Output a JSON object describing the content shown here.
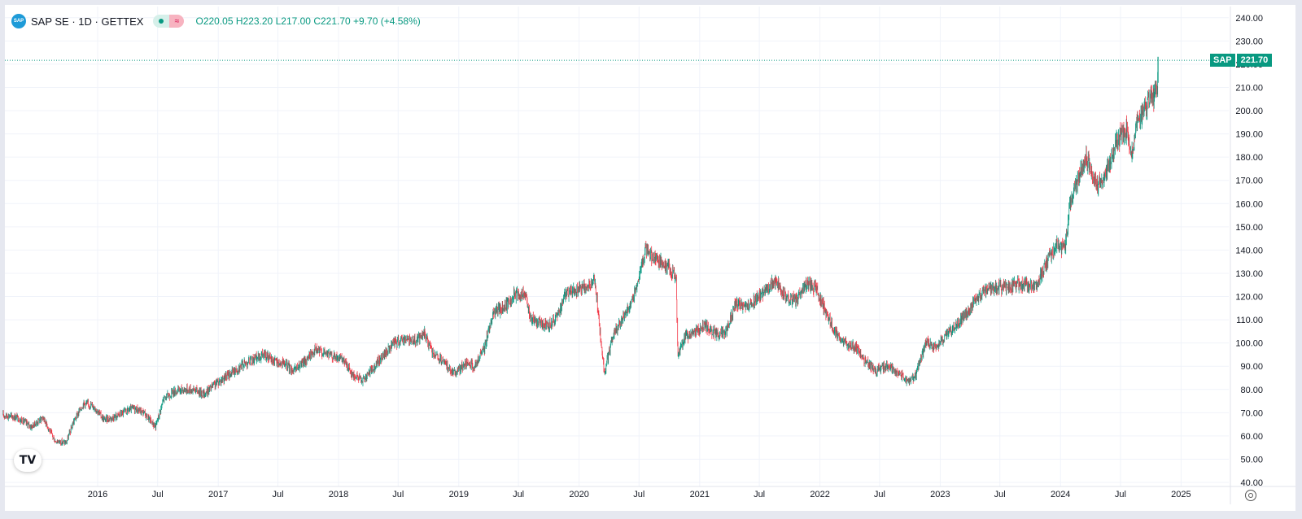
{
  "legend": {
    "symbol": "SAP SE · 1D · GETTEX",
    "logo_text": "SAP",
    "flag_glyph": "≈",
    "open_label": "O",
    "open": "220.05",
    "high_label": "H",
    "high": "223.20",
    "low_label": "L",
    "low": "217.00",
    "close_label": "C",
    "close": "221.70",
    "change": "+9.70 (+4.58%)"
  },
  "price_tag": {
    "symbol": "SAP",
    "value": "221.70"
  },
  "colors": {
    "up": "#089981",
    "down": "#f23645",
    "grid": "#f0f3fa",
    "axis_text": "#131722",
    "tag": "#089981"
  },
  "icons": {
    "logo": "tradingview-logo-icon",
    "settings": "gear-icon"
  },
  "tradingview_logo_text": "TV",
  "chart_data": {
    "type": "candlestick",
    "title": "SAP SE · 1D · GETTEX",
    "y_ticks": [
      40,
      50,
      60,
      70,
      80,
      90,
      100,
      110,
      120,
      130,
      140,
      150,
      160,
      170,
      180,
      190,
      200,
      210,
      220,
      230,
      240
    ],
    "y_tick_labels": [
      "40.00",
      "50.00",
      "60.00",
      "70.00",
      "80.00",
      "90.00",
      "100.00",
      "110.00",
      "120.00",
      "130.00",
      "140.00",
      "150.00",
      "160.00",
      "170.00",
      "180.00",
      "190.00",
      "200.00",
      "210.00",
      "220.00",
      "230.00",
      "240.00"
    ],
    "ylim": [
      40,
      240
    ],
    "x_ticks": [
      {
        "label": "2016",
        "date": "2016-01-01"
      },
      {
        "label": "Jul",
        "date": "2016-07-01"
      },
      {
        "label": "2017",
        "date": "2017-01-01"
      },
      {
        "label": "Jul",
        "date": "2017-07-01"
      },
      {
        "label": "2018",
        "date": "2018-01-01"
      },
      {
        "label": "Jul",
        "date": "2018-07-01"
      },
      {
        "label": "2019",
        "date": "2019-01-01"
      },
      {
        "label": "Jul",
        "date": "2019-07-01"
      },
      {
        "label": "2020",
        "date": "2020-01-01"
      },
      {
        "label": "Jul",
        "date": "2020-07-01"
      },
      {
        "label": "2021",
        "date": "2021-01-01"
      },
      {
        "label": "Jul",
        "date": "2021-07-01"
      },
      {
        "label": "2022",
        "date": "2022-01-01"
      },
      {
        "label": "Jul",
        "date": "2022-07-01"
      },
      {
        "label": "2023",
        "date": "2023-01-01"
      },
      {
        "label": "Jul",
        "date": "2023-07-01"
      },
      {
        "label": "2024",
        "date": "2024-01-01"
      },
      {
        "label": "Jul",
        "date": "2024-07-01"
      },
      {
        "label": "2025",
        "date": "2025-01-01"
      }
    ],
    "last_price": 221.7,
    "grid": true,
    "series": [
      {
        "name": "SAP",
        "points": [
          {
            "date": "2015-03-20",
            "close": 69
          },
          {
            "date": "2015-05-01",
            "close": 68
          },
          {
            "date": "2015-06-15",
            "close": 64
          },
          {
            "date": "2015-07-20",
            "close": 68
          },
          {
            "date": "2015-08-24",
            "close": 58
          },
          {
            "date": "2015-09-28",
            "close": 57
          },
          {
            "date": "2015-10-20",
            "close": 66
          },
          {
            "date": "2015-11-20",
            "close": 74
          },
          {
            "date": "2015-12-20",
            "close": 73
          },
          {
            "date": "2016-01-20",
            "close": 67
          },
          {
            "date": "2016-02-20",
            "close": 68
          },
          {
            "date": "2016-03-20",
            "close": 70
          },
          {
            "date": "2016-04-20",
            "close": 72
          },
          {
            "date": "2016-05-20",
            "close": 70
          },
          {
            "date": "2016-06-25",
            "close": 64
          },
          {
            "date": "2016-07-20",
            "close": 76
          },
          {
            "date": "2016-08-20",
            "close": 79
          },
          {
            "date": "2016-09-20",
            "close": 80
          },
          {
            "date": "2016-10-20",
            "close": 80
          },
          {
            "date": "2016-11-20",
            "close": 78
          },
          {
            "date": "2016-12-20",
            "close": 82
          },
          {
            "date": "2017-01-20",
            "close": 85
          },
          {
            "date": "2017-02-20",
            "close": 88
          },
          {
            "date": "2017-03-20",
            "close": 91
          },
          {
            "date": "2017-04-20",
            "close": 93
          },
          {
            "date": "2017-05-20",
            "close": 95
          },
          {
            "date": "2017-06-20",
            "close": 92
          },
          {
            "date": "2017-07-20",
            "close": 91
          },
          {
            "date": "2017-08-20",
            "close": 88
          },
          {
            "date": "2017-09-20",
            "close": 92
          },
          {
            "date": "2017-10-20",
            "close": 97
          },
          {
            "date": "2017-11-20",
            "close": 96
          },
          {
            "date": "2017-12-20",
            "close": 94
          },
          {
            "date": "2018-01-20",
            "close": 92
          },
          {
            "date": "2018-02-15",
            "close": 86
          },
          {
            "date": "2018-03-20",
            "close": 84
          },
          {
            "date": "2018-04-20",
            "close": 90
          },
          {
            "date": "2018-05-20",
            "close": 95
          },
          {
            "date": "2018-06-20",
            "close": 100
          },
          {
            "date": "2018-07-20",
            "close": 102
          },
          {
            "date": "2018-08-20",
            "close": 101
          },
          {
            "date": "2018-09-20",
            "close": 104
          },
          {
            "date": "2018-10-15",
            "close": 95
          },
          {
            "date": "2018-11-20",
            "close": 91
          },
          {
            "date": "2018-12-20",
            "close": 87
          },
          {
            "date": "2019-01-20",
            "close": 91
          },
          {
            "date": "2019-02-20",
            "close": 90
          },
          {
            "date": "2019-03-20",
            "close": 98
          },
          {
            "date": "2019-04-15",
            "close": 113
          },
          {
            "date": "2019-05-20",
            "close": 115
          },
          {
            "date": "2019-06-20",
            "close": 121
          },
          {
            "date": "2019-07-20",
            "close": 121
          },
          {
            "date": "2019-08-10",
            "close": 110
          },
          {
            "date": "2019-09-20",
            "close": 108
          },
          {
            "date": "2019-10-20",
            "close": 109
          },
          {
            "date": "2019-11-20",
            "close": 121
          },
          {
            "date": "2019-12-20",
            "close": 122
          },
          {
            "date": "2020-01-20",
            "close": 124
          },
          {
            "date": "2020-02-19",
            "close": 126
          },
          {
            "date": "2020-03-18",
            "close": 87
          },
          {
            "date": "2020-04-15",
            "close": 104
          },
          {
            "date": "2020-05-20",
            "close": 112
          },
          {
            "date": "2020-06-20",
            "close": 122
          },
          {
            "date": "2020-07-20",
            "close": 140
          },
          {
            "date": "2020-08-20",
            "close": 136
          },
          {
            "date": "2020-09-20",
            "close": 134
          },
          {
            "date": "2020-10-22",
            "close": 128
          },
          {
            "date": "2020-10-27",
            "close": 95
          },
          {
            "date": "2020-11-20",
            "close": 103
          },
          {
            "date": "2020-12-20",
            "close": 105
          },
          {
            "date": "2021-01-20",
            "close": 107
          },
          {
            "date": "2021-02-20",
            "close": 104
          },
          {
            "date": "2021-03-20",
            "close": 104
          },
          {
            "date": "2021-04-20",
            "close": 117
          },
          {
            "date": "2021-05-20",
            "close": 115
          },
          {
            "date": "2021-06-20",
            "close": 119
          },
          {
            "date": "2021-07-20",
            "close": 123
          },
          {
            "date": "2021-08-20",
            "close": 127
          },
          {
            "date": "2021-09-20",
            "close": 120
          },
          {
            "date": "2021-10-20",
            "close": 118
          },
          {
            "date": "2021-11-20",
            "close": 125
          },
          {
            "date": "2021-12-20",
            "close": 124
          },
          {
            "date": "2022-01-20",
            "close": 113
          },
          {
            "date": "2022-02-20",
            "close": 104
          },
          {
            "date": "2022-03-20",
            "close": 100
          },
          {
            "date": "2022-04-20",
            "close": 98
          },
          {
            "date": "2022-05-20",
            "close": 92
          },
          {
            "date": "2022-06-20",
            "close": 88
          },
          {
            "date": "2022-07-20",
            "close": 90
          },
          {
            "date": "2022-08-20",
            "close": 88
          },
          {
            "date": "2022-09-30",
            "close": 83
          },
          {
            "date": "2022-10-20",
            "close": 87
          },
          {
            "date": "2022-11-20",
            "close": 100
          },
          {
            "date": "2022-12-20",
            "close": 98
          },
          {
            "date": "2023-01-20",
            "close": 103
          },
          {
            "date": "2023-02-20",
            "close": 108
          },
          {
            "date": "2023-03-20",
            "close": 112
          },
          {
            "date": "2023-04-20",
            "close": 118
          },
          {
            "date": "2023-05-20",
            "close": 123
          },
          {
            "date": "2023-06-20",
            "close": 124
          },
          {
            "date": "2023-07-20",
            "close": 124
          },
          {
            "date": "2023-08-20",
            "close": 125
          },
          {
            "date": "2023-09-20",
            "close": 125
          },
          {
            "date": "2023-10-20",
            "close": 124
          },
          {
            "date": "2023-11-20",
            "close": 135
          },
          {
            "date": "2023-12-20",
            "close": 143
          },
          {
            "date": "2024-01-15",
            "close": 140
          },
          {
            "date": "2024-01-30",
            "close": 160
          },
          {
            "date": "2024-02-20",
            "close": 169
          },
          {
            "date": "2024-03-20",
            "close": 179
          },
          {
            "date": "2024-04-20",
            "close": 168
          },
          {
            "date": "2024-05-20",
            "close": 173
          },
          {
            "date": "2024-06-20",
            "close": 187
          },
          {
            "date": "2024-07-20",
            "close": 192
          },
          {
            "date": "2024-08-05",
            "close": 182
          },
          {
            "date": "2024-08-20",
            "close": 195
          },
          {
            "date": "2024-09-20",
            "close": 202
          },
          {
            "date": "2024-10-10",
            "close": 206
          },
          {
            "date": "2024-10-22",
            "close": 212
          },
          {
            "date": "2024-10-23",
            "close": 221.7
          }
        ]
      }
    ]
  }
}
